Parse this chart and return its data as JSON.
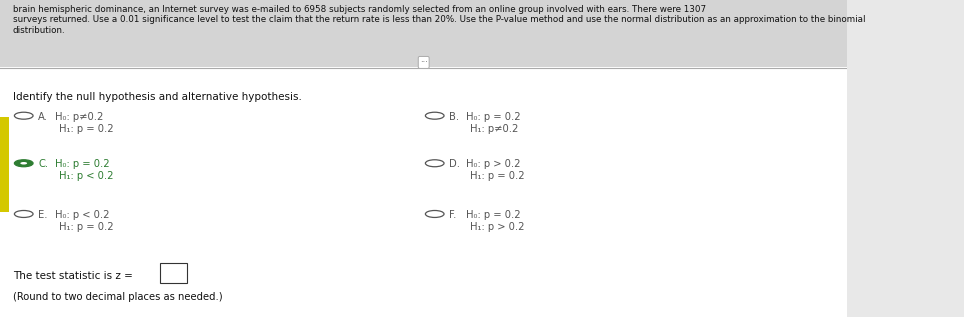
{
  "header_text": "brain hemispheric dominance, an Internet survey was e-mailed to 6958 subjects randomly selected from an online group involved with ears. There were 1307\nsurveys returned. Use a 0.01 significance level to test the claim that the return rate is less than 20%. Use the P-value method and use the normal distribution as an approximation to the binomial\ndistribution.",
  "identify_text": "Identify the null hypothesis and alternative hypothesis.",
  "options": [
    {
      "label": "A.",
      "h0": "H₀: p≠0.2",
      "h1": "H₁: p = 0.2",
      "selected": false
    },
    {
      "label": "B.",
      "h0": "H₀: p = 0.2",
      "h1": "H₁: p≠0.2",
      "selected": false
    },
    {
      "label": "C.",
      "h0": "H₀: p = 0.2",
      "h1": "H₁: p < 0.2",
      "selected": true
    },
    {
      "label": "D.",
      "h0": "H₀: p > 0.2",
      "h1": "H₁: p = 0.2",
      "selected": false
    },
    {
      "label": "E.",
      "h0": "H₀: p < 0.2",
      "h1": "H₁: p = 0.2",
      "selected": false
    },
    {
      "label": "F.",
      "h0": "H₀: p = 0.2",
      "h1": "H₁: p > 0.2",
      "selected": false
    }
  ],
  "test_statistic_text": "The test statistic is z =",
  "round_text": "(Round to two decimal places as needed.)",
  "bg_color": "#e8e8e8",
  "panel_color": "#ffffff",
  "selected_color": "#2e7d32",
  "unselected_color": "#555555",
  "header_bg": "#d4d4d4",
  "separator_color": "#aaaaaa",
  "yellow_stripe": "#d4c800"
}
